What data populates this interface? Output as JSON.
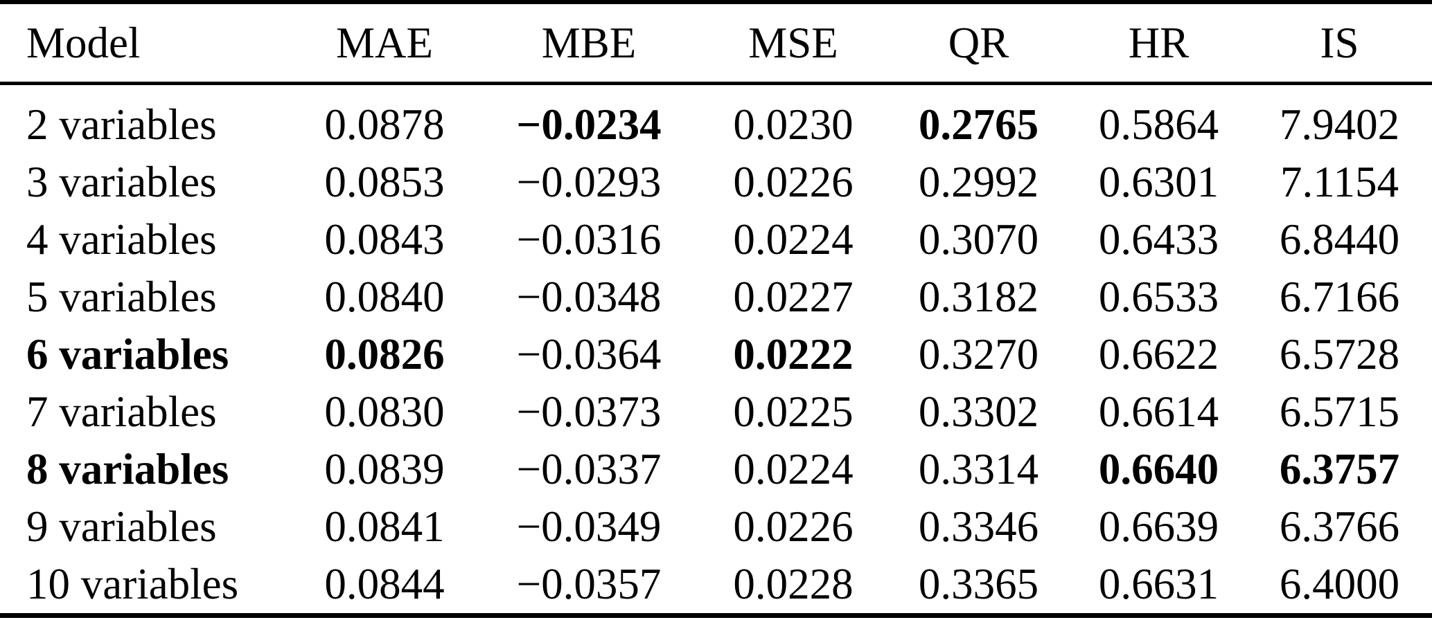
{
  "table": {
    "columns": [
      "Model",
      "MAE",
      "MBE",
      "MSE",
      "QR",
      "HR",
      "IS"
    ],
    "rows": [
      {
        "cells": [
          "2 variables",
          "0.0878",
          "−0.0234",
          "0.0230",
          "0.2765",
          "0.5864",
          "7.9402"
        ],
        "bold": [
          false,
          false,
          true,
          false,
          true,
          false,
          false
        ]
      },
      {
        "cells": [
          "3 variables",
          "0.0853",
          "−0.0293",
          "0.0226",
          "0.2992",
          "0.6301",
          "7.1154"
        ],
        "bold": [
          false,
          false,
          false,
          false,
          false,
          false,
          false
        ]
      },
      {
        "cells": [
          "4 variables",
          "0.0843",
          "−0.0316",
          "0.0224",
          "0.3070",
          "0.6433",
          "6.8440"
        ],
        "bold": [
          false,
          false,
          false,
          false,
          false,
          false,
          false
        ]
      },
      {
        "cells": [
          "5 variables",
          "0.0840",
          "−0.0348",
          "0.0227",
          "0.3182",
          "0.6533",
          "6.7166"
        ],
        "bold": [
          false,
          false,
          false,
          false,
          false,
          false,
          false
        ]
      },
      {
        "cells": [
          "6 variables",
          "0.0826",
          "−0.0364",
          "0.0222",
          "0.3270",
          "0.6622",
          "6.5728"
        ],
        "bold": [
          true,
          true,
          false,
          true,
          false,
          false,
          false
        ]
      },
      {
        "cells": [
          "7 variables",
          "0.0830",
          "−0.0373",
          "0.0225",
          "0.3302",
          "0.6614",
          "6.5715"
        ],
        "bold": [
          false,
          false,
          false,
          false,
          false,
          false,
          false
        ]
      },
      {
        "cells": [
          "8 variables",
          "0.0839",
          "−0.0337",
          "0.0224",
          "0.3314",
          "0.6640",
          "6.3757"
        ],
        "bold": [
          true,
          false,
          false,
          false,
          false,
          true,
          true
        ]
      },
      {
        "cells": [
          "9 variables",
          "0.0841",
          "−0.0349",
          "0.0226",
          "0.3346",
          "0.6639",
          "6.3766"
        ],
        "bold": [
          false,
          false,
          false,
          false,
          false,
          false,
          false
        ]
      },
      {
        "cells": [
          "10 variables",
          "0.0844",
          "−0.0357",
          "0.0228",
          "0.3365",
          "0.6631",
          "6.4000"
        ],
        "bold": [
          false,
          false,
          false,
          false,
          false,
          false,
          false
        ]
      }
    ],
    "text_color": "#000000",
    "background_color": "#ffffff"
  }
}
